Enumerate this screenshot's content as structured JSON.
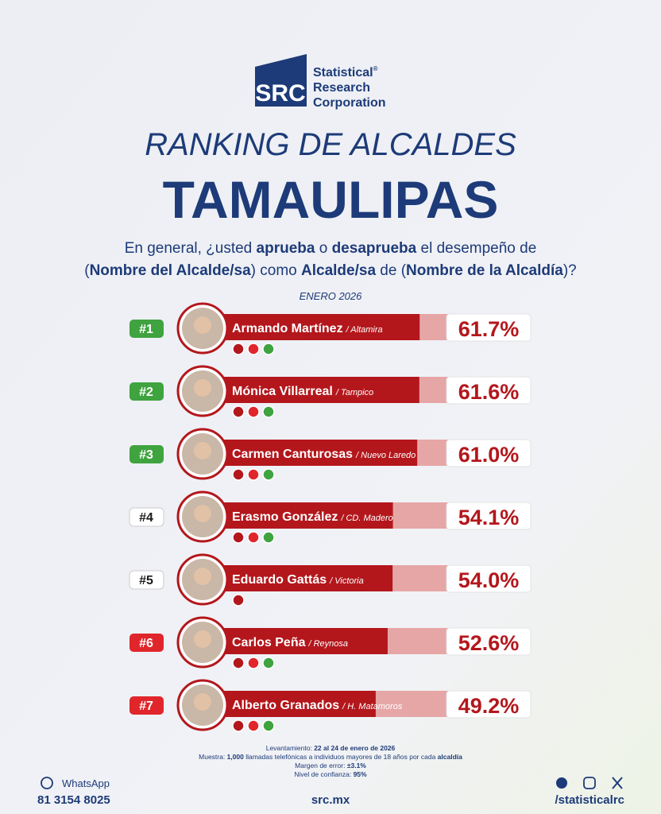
{
  "logo": {
    "mark": "SRC",
    "name": [
      "Statistical",
      "Research",
      "Corporation"
    ],
    "registered": "®"
  },
  "title": "RANKING DE ALCALDES",
  "state": "TAMAULIPAS",
  "question": [
    [
      {
        "text": "En general, ¿usted ",
        "bold": false
      },
      {
        "text": "aprueba",
        "bold": true
      },
      {
        "text": " o ",
        "bold": false
      },
      {
        "text": "desaprueba",
        "bold": true
      },
      {
        "text": " el desempeño de",
        "bold": false
      }
    ],
    [
      {
        "text": "(",
        "bold": false
      },
      {
        "text": "Nombre del Alcalde/sa",
        "bold": true
      },
      {
        "text": ") como ",
        "bold": false
      },
      {
        "text": "Alcalde/sa",
        "bold": true
      },
      {
        "text": " de (",
        "bold": false
      },
      {
        "text": "Nombre de la Alcaldía",
        "bold": true
      },
      {
        "text": ")?",
        "bold": false
      }
    ]
  ],
  "date": "ENERO 2026",
  "chart_data": {
    "type": "bar",
    "orientation": "horizontal",
    "bar_color": "#b3171c",
    "track_color": "#e6a6a6",
    "xlim": [
      0,
      70
    ],
    "ranks": [
      {
        "label": "#1",
        "color": "#3fa33f"
      },
      {
        "label": "#2",
        "color": "#3fa33f"
      },
      {
        "label": "#3",
        "color": "#3fa33f"
      },
      {
        "label": "#4",
        "color": "#ffffff"
      },
      {
        "label": "#5",
        "color": "#ffffff"
      },
      {
        "label": "#6",
        "color": "#e0262b"
      },
      {
        "label": "#7",
        "color": "#e0262b"
      }
    ],
    "categories": [
      "Armando Martínez",
      "Mónica Villarreal",
      "Carmen Canturosas",
      "Erasmo González",
      "Eduardo Gattás",
      "Carlos Peña",
      "Alberto Granados"
    ],
    "cities": [
      "/ Altamira",
      "/ Tampico",
      "/ Nuevo Laredo",
      "/ CD. Madero",
      "/ Victoria",
      "/ Reynosa",
      "/ H. Matamoros"
    ],
    "values": [
      61.7,
      61.6,
      61.0,
      54.1,
      54.0,
      52.6,
      49.2
    ],
    "value_labels": [
      "61.7%",
      "61.6%",
      "61.0%",
      "54.1%",
      "54.0%",
      "52.6%",
      "49.2%"
    ]
  },
  "methodology": [
    [
      {
        "text": "Levantamiento: ",
        "bold": false
      },
      {
        "text": "22 al 24 de enero de 2026",
        "bold": true
      }
    ],
    [
      {
        "text": "Muestra: ",
        "bold": false
      },
      {
        "text": "1,000",
        "bold": true
      },
      {
        "text": " llamadas telefónicas a individuos mayores de 18 años por cada ",
        "bold": false
      },
      {
        "text": "alcaldía",
        "bold": true
      }
    ],
    [
      {
        "text": "Margen de error: ",
        "bold": false
      },
      {
        "text": "±3.1%",
        "bold": true
      }
    ],
    [
      {
        "text": "Nivel de confianza: ",
        "bold": false
      },
      {
        "text": "95%",
        "bold": true
      }
    ]
  ],
  "footer": {
    "whatsapp_label": "WhatsApp",
    "phone": "81 3154 8025",
    "website": "src.mx",
    "social": "/statisticalrc"
  }
}
